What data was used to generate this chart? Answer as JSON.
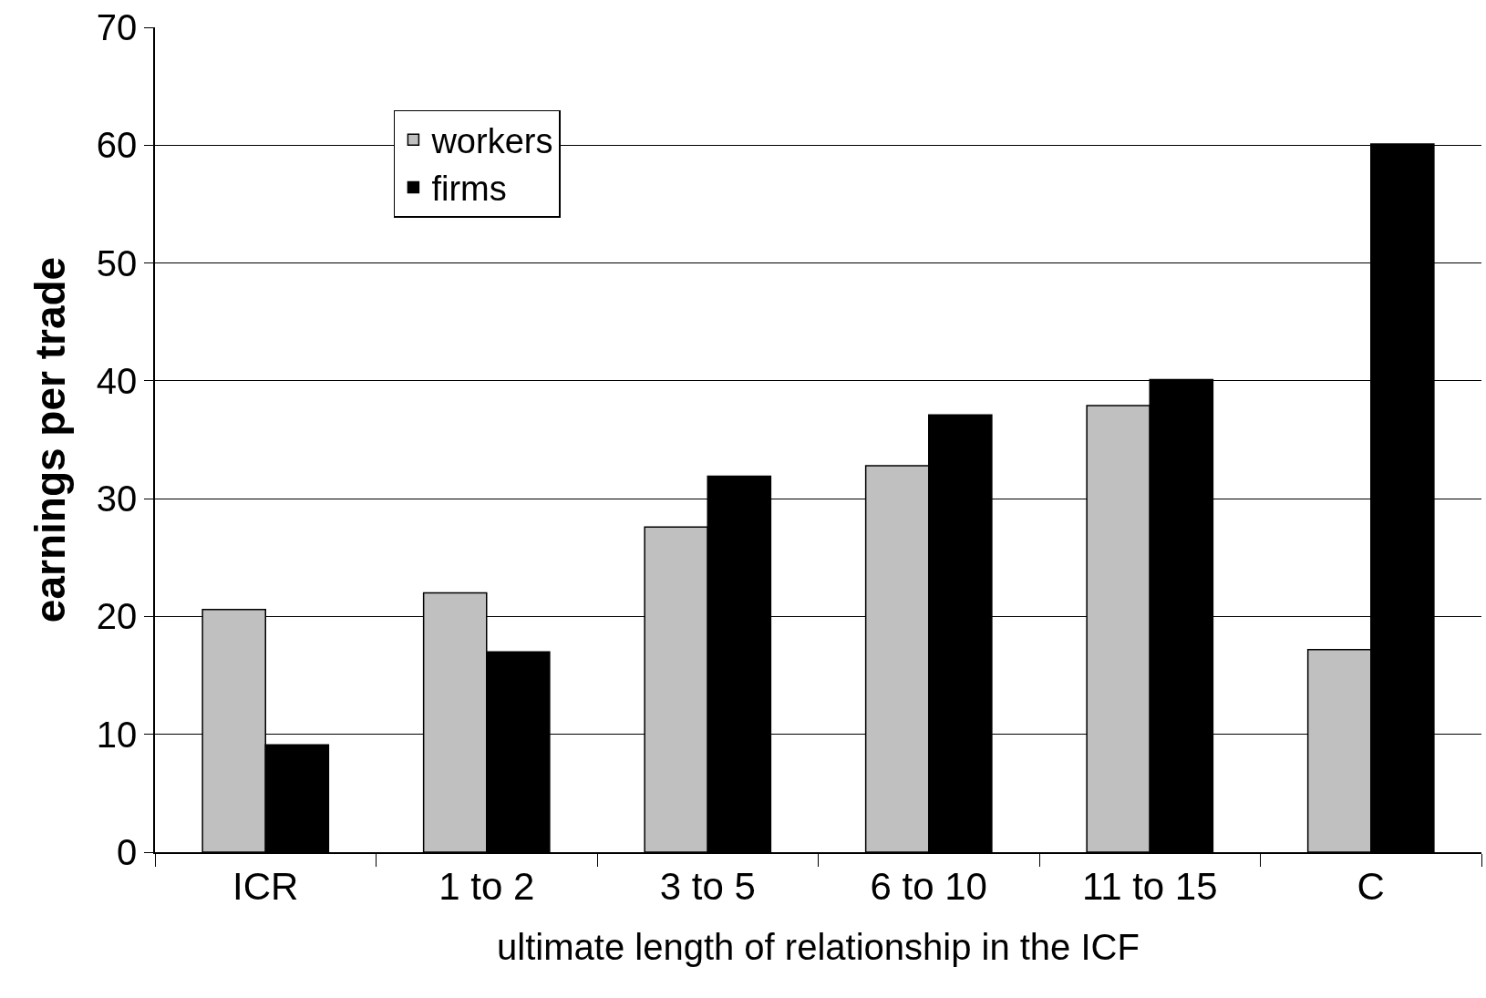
{
  "chart_data": {
    "type": "bar",
    "xlabel": "ultimate length of relationship in the ICF",
    "ylabel": "earnings per trade",
    "categories": [
      "ICR",
      "1 to 2",
      "3 to 5",
      "6 to 10",
      "11 to 15",
      "C"
    ],
    "series": [
      {
        "name": "workers",
        "color": "#c0c0c0",
        "values": [
          20.6,
          22,
          27.6,
          32.8,
          37.9,
          17.2
        ]
      },
      {
        "name": "firms",
        "color": "#000000",
        "values": [
          9.1,
          17,
          31.9,
          37.1,
          40.1,
          60.1
        ]
      }
    ],
    "ylim": [
      0,
      70
    ],
    "yticks": [
      0,
      10,
      20,
      30,
      40,
      50,
      60,
      70
    ],
    "grid": "y",
    "legend": "top left"
  }
}
